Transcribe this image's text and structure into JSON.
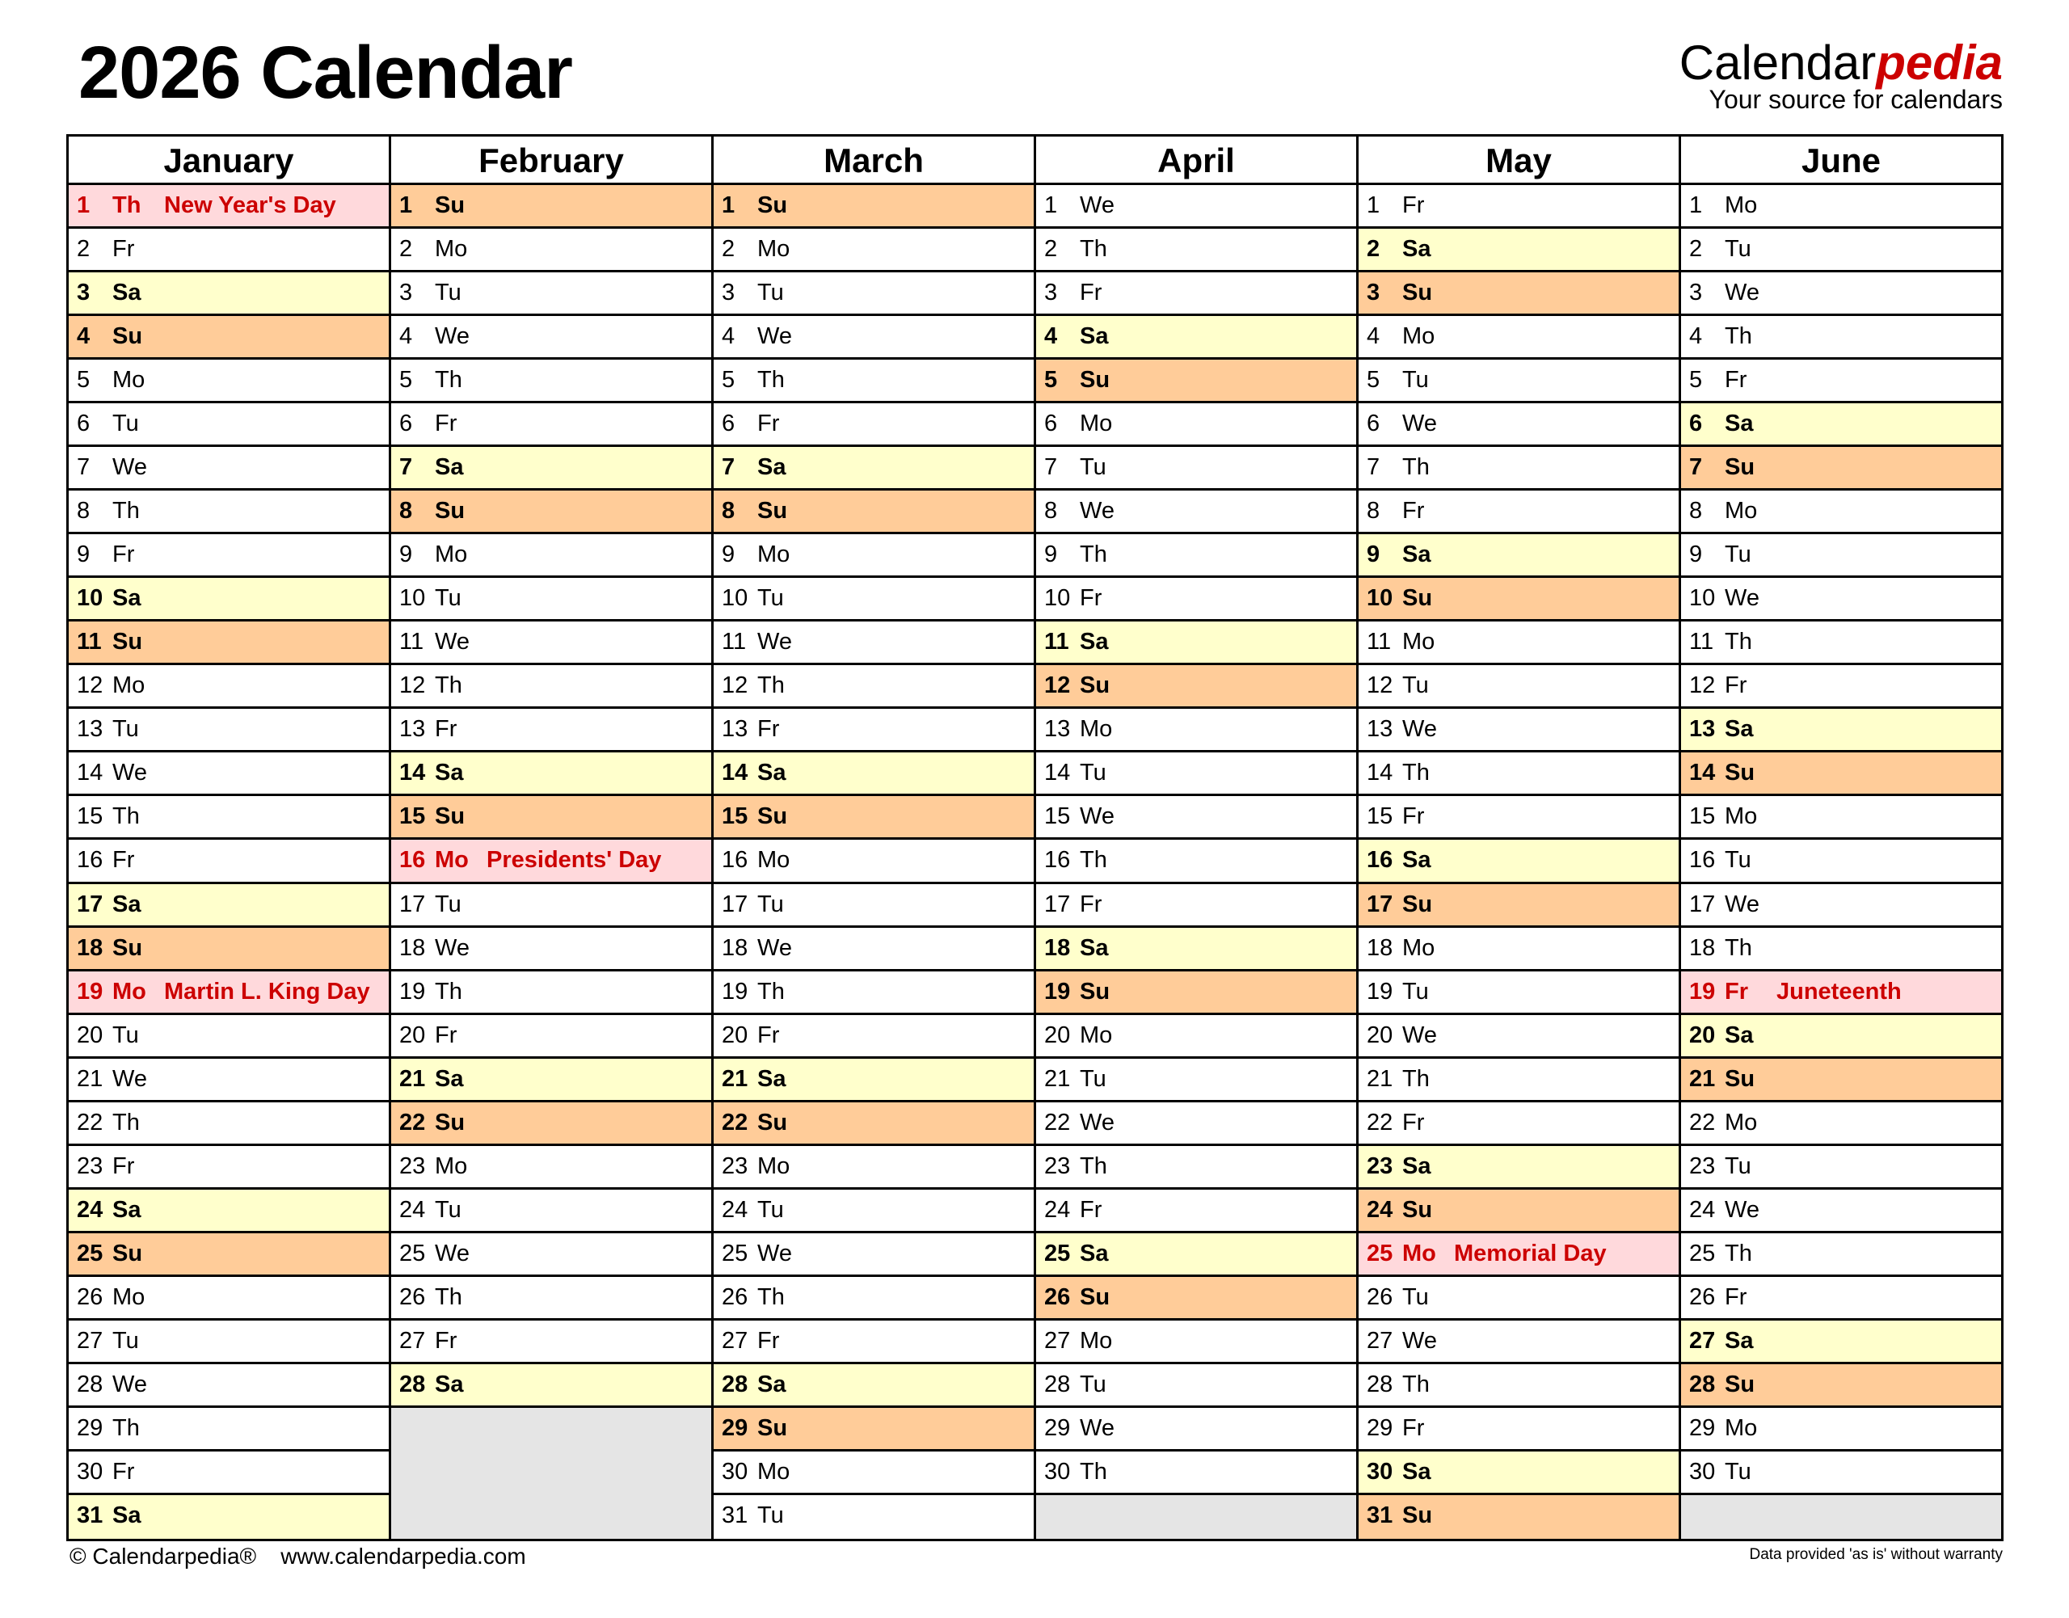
{
  "title": "2026 Calendar",
  "logo": {
    "part1": "Calendar",
    "part2": "pedia",
    "tagline": "Your source for calendars"
  },
  "colors": {
    "saturday": "#ffffcc",
    "sunday": "#ffcc99",
    "holiday": "#ffd9dc",
    "holiday_text": "#cc0000",
    "empty": "#e5e5e5"
  },
  "months": [
    {
      "name": "January",
      "days": [
        "Th",
        "Fr",
        "Sa",
        "Su",
        "Mo",
        "Tu",
        "We",
        "Th",
        "Fr",
        "Sa",
        "Su",
        "Mo",
        "Tu",
        "We",
        "Th",
        "Fr",
        "Sa",
        "Su",
        "Mo",
        "Tu",
        "We",
        "Th",
        "Fr",
        "Sa",
        "Su",
        "Mo",
        "Tu",
        "We",
        "Th",
        "Fr",
        "Sa"
      ],
      "holidays": {
        "1": "New Year's Day",
        "19": "Martin L. King Day"
      }
    },
    {
      "name": "February",
      "days": [
        "Su",
        "Mo",
        "Tu",
        "We",
        "Th",
        "Fr",
        "Sa",
        "Su",
        "Mo",
        "Tu",
        "We",
        "Th",
        "Fr",
        "Sa",
        "Su",
        "Mo",
        "Tu",
        "We",
        "Th",
        "Fr",
        "Sa",
        "Su",
        "Mo",
        "Tu",
        "We",
        "Th",
        "Fr",
        "Sa"
      ],
      "holidays": {
        "16": "Presidents' Day"
      }
    },
    {
      "name": "March",
      "days": [
        "Su",
        "Mo",
        "Tu",
        "We",
        "Th",
        "Fr",
        "Sa",
        "Su",
        "Mo",
        "Tu",
        "We",
        "Th",
        "Fr",
        "Sa",
        "Su",
        "Mo",
        "Tu",
        "We",
        "Th",
        "Fr",
        "Sa",
        "Su",
        "Mo",
        "Tu",
        "We",
        "Th",
        "Fr",
        "Sa",
        "Su",
        "Mo",
        "Tu"
      ],
      "holidays": {}
    },
    {
      "name": "April",
      "days": [
        "We",
        "Th",
        "Fr",
        "Sa",
        "Su",
        "Mo",
        "Tu",
        "We",
        "Th",
        "Fr",
        "Sa",
        "Su",
        "Mo",
        "Tu",
        "We",
        "Th",
        "Fr",
        "Sa",
        "Su",
        "Mo",
        "Tu",
        "We",
        "Th",
        "Fr",
        "Sa",
        "Su",
        "Mo",
        "Tu",
        "We",
        "Th"
      ],
      "holidays": {}
    },
    {
      "name": "May",
      "days": [
        "Fr",
        "Sa",
        "Su",
        "Mo",
        "Tu",
        "We",
        "Th",
        "Fr",
        "Sa",
        "Su",
        "Mo",
        "Tu",
        "We",
        "Th",
        "Fr",
        "Sa",
        "Su",
        "Mo",
        "Tu",
        "We",
        "Th",
        "Fr",
        "Sa",
        "Su",
        "Mo",
        "Tu",
        "We",
        "Th",
        "Fr",
        "Sa",
        "Su"
      ],
      "holidays": {
        "25": "Memorial Day"
      }
    },
    {
      "name": "June",
      "days": [
        "Mo",
        "Tu",
        "We",
        "Th",
        "Fr",
        "Sa",
        "Su",
        "Mo",
        "Tu",
        "We",
        "Th",
        "Fr",
        "Sa",
        "Su",
        "Mo",
        "Tu",
        "We",
        "Th",
        "Fr",
        "Sa",
        "Su",
        "Mo",
        "Tu",
        "We",
        "Th",
        "Fr",
        "Sa",
        "Su",
        "Mo",
        "Tu"
      ],
      "holidays": {
        "19": "Juneteenth"
      }
    }
  ],
  "footer": {
    "copyright": "© Calendarpedia®",
    "url": "www.calendarpedia.com",
    "disclaimer": "Data provided 'as is' without warranty"
  }
}
